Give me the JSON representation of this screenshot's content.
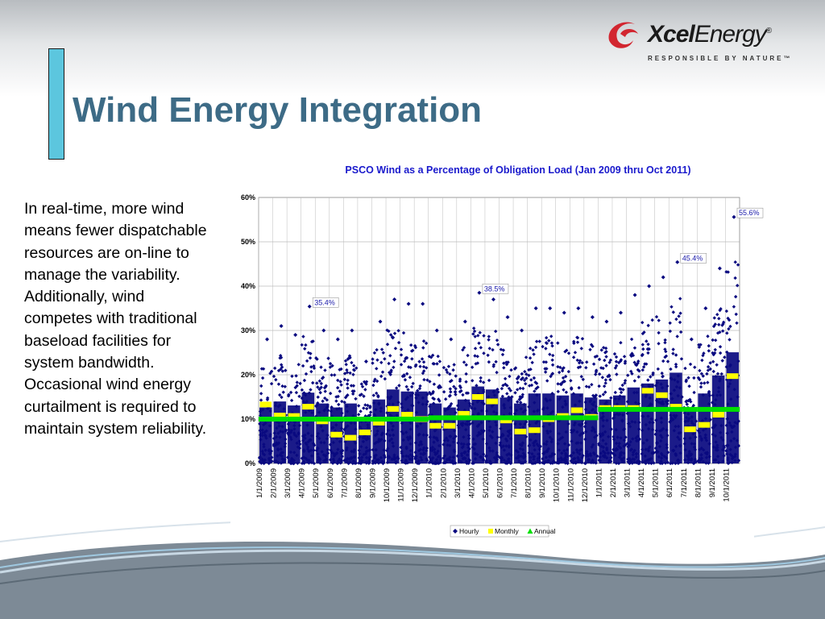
{
  "slide": {
    "title": "Wind Energy Integration",
    "body": "In real-time, more wind means fewer dispatchable resources are on-line to manage the variability. Additionally, wind competes with traditional baseload facilities for system bandwidth. Occasional wind energy curtailment is required to maintain system reliability."
  },
  "logo": {
    "name_bold": "Xcel",
    "name_light": "Energy",
    "registered": "®",
    "tagline": "RESPONSIBLE BY NATURE™"
  },
  "colors": {
    "title": "#3d6b86",
    "accent_bar": "#5cc6de",
    "hourly": "#0a0a80",
    "monthly": "#ffff00",
    "annual": "#00e000",
    "logo_red": "#d22630"
  },
  "chart_data": {
    "type": "scatter",
    "title": "PSCO Wind as a Percentage of Obligation Load (Jan 2009 thru Oct 2011)",
    "xlabel": "",
    "ylabel": "",
    "ylim": [
      0,
      60
    ],
    "yticks": [
      "0%",
      "10%",
      "20%",
      "30%",
      "40%",
      "50%",
      "60%"
    ],
    "grid": true,
    "legend_position": "bottom",
    "legend": [
      "Hourly",
      "Monthly",
      "Annual"
    ],
    "x_labels": [
      "1/1/2009",
      "2/1/2009",
      "3/1/2009",
      "4/1/2009",
      "5/1/2009",
      "6/1/2009",
      "7/1/2009",
      "8/1/2009",
      "9/1/2009",
      "10/1/2009",
      "11/1/2009",
      "12/1/2009",
      "1/1/2010",
      "2/1/2010",
      "3/1/2010",
      "4/1/2010",
      "5/1/2010",
      "6/1/2010",
      "7/1/2010",
      "8/1/2010",
      "9/1/2010",
      "10/1/2010",
      "11/1/2010",
      "12/1/2010",
      "1/1/2011",
      "2/1/2011",
      "3/1/2011",
      "4/1/2011",
      "5/1/2011",
      "6/1/2011",
      "7/1/2011",
      "8/1/2011",
      "9/1/2011",
      "10/1/2011"
    ],
    "hourly_monthly_max": [
      28,
      31,
      29,
      35.4,
      30,
      28,
      30,
      23,
      32,
      37,
      36,
      36,
      30,
      28,
      32,
      38.5,
      37,
      33,
      30,
      35,
      35,
      34,
      35,
      33,
      32,
      34,
      38,
      40,
      42,
      45.4,
      28,
      35,
      44,
      55.6
    ],
    "series": [
      {
        "name": "Monthly",
        "values": [
          13.3,
          10.8,
          10.7,
          12.8,
          9.5,
          6.5,
          5.8,
          7.0,
          9.2,
          12.3,
          11.0,
          10.0,
          8.5,
          8.5,
          11.2,
          15.0,
          14.0,
          9.7,
          7.2,
          7.5,
          10.0,
          10.7,
          12.0,
          10.5,
          12.5,
          12.5,
          12.5,
          16.4,
          15.4,
          12.8,
          7.7,
          8.7,
          11.0,
          19.7
        ]
      },
      {
        "name": "Annual",
        "values": [
          10.0,
          10.0,
          10.0,
          10.0,
          10.0,
          10.0,
          10.0,
          10.0,
          10.0,
          10.0,
          10.0,
          10.0,
          10.3,
          10.3,
          10.3,
          10.3,
          10.3,
          10.3,
          10.3,
          10.3,
          10.3,
          10.3,
          10.3,
          10.3,
          12.2,
          12.2,
          12.2,
          12.2,
          12.2,
          12.2,
          12.2,
          12.2,
          12.2,
          12.2
        ]
      }
    ],
    "annotations": [
      {
        "label": "35.4%",
        "category": "4/1/2009",
        "value": 35.4
      },
      {
        "label": "38.5%",
        "category": "4/1/2010",
        "value": 38.5
      },
      {
        "label": "45.4%",
        "category": "6/1/2011",
        "value": 45.4
      },
      {
        "label": "55.6%",
        "category": "10/1/2011",
        "value": 55.6
      }
    ]
  }
}
